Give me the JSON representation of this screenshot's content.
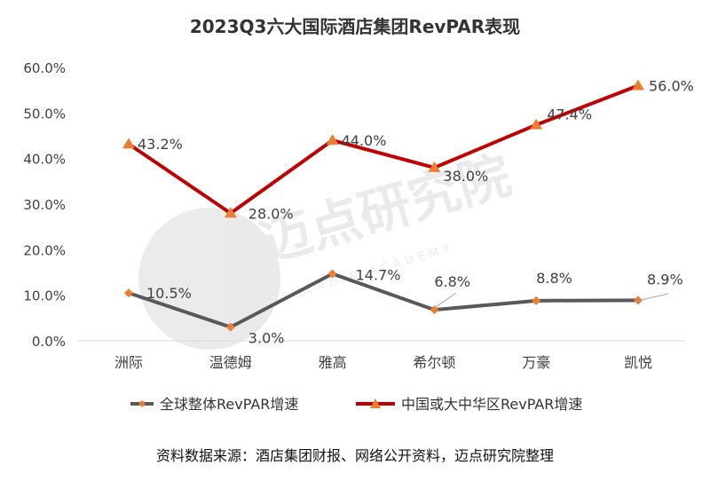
{
  "chart_data": {
    "type": "line",
    "title": "2023Q3六大国际酒店集团RevPAR表现",
    "categories": [
      "洲际",
      "温德姆",
      "雅高",
      "希尔顿",
      "万豪",
      "凯悦"
    ],
    "ylim": [
      0,
      60
    ],
    "yticks": [
      "0.0%",
      "10.0%",
      "20.0%",
      "30.0%",
      "40.0%",
      "50.0%",
      "60.0%"
    ],
    "ytick_values": [
      0,
      10,
      20,
      30,
      40,
      50,
      60
    ],
    "grid": false,
    "legend_position": "bottom",
    "series": [
      {
        "name": "全球整体RevPAR增速",
        "values": [
          10.5,
          3.0,
          14.7,
          6.8,
          8.8,
          8.9
        ],
        "labels": [
          "10.5%",
          "3.0%",
          "14.7%",
          "6.8%",
          "8.8%",
          "8.9%"
        ],
        "color": "#595959",
        "marker": "diamond",
        "marker_color": "#ED7D31"
      },
      {
        "name": "中国或大中华区RevPAR增速",
        "values": [
          43.2,
          28.0,
          44.0,
          38.0,
          47.4,
          56.0
        ],
        "labels": [
          "43.2%",
          "28.0%",
          "44.0%",
          "38.0%",
          "47.4%",
          "56.0%"
        ],
        "color": "#C00000",
        "marker": "triangle",
        "marker_color": "#ED7D31"
      }
    ]
  },
  "source_note": "资料数据来源：酒店集团财报、网络公开资料，迈点研究院整理",
  "watermark": {
    "text": "迈点研究院",
    "subtext": "MEADIN ACADEMY"
  }
}
